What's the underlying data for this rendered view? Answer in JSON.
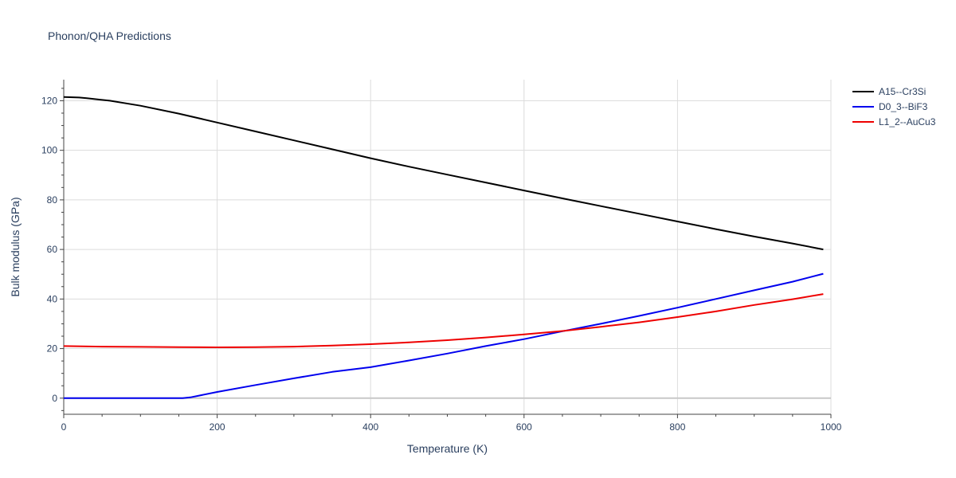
{
  "chart_data": {
    "type": "line",
    "title": "Phonon/QHA Predictions",
    "xlabel": "Temperature (K)",
    "ylabel": "Bulk modulus (GPa)",
    "xlim": [
      0,
      1000
    ],
    "ylim": [
      -6.5,
      128.5
    ],
    "x_ticks": [
      0,
      200,
      400,
      600,
      800,
      1000
    ],
    "y_ticks": [
      0,
      20,
      40,
      60,
      80,
      100,
      120
    ],
    "grid": true,
    "legend_position": "top-right",
    "series": [
      {
        "name": "A15--Cr3Si",
        "color": "#000000",
        "points": [
          [
            0,
            121.5
          ],
          [
            20,
            121.3
          ],
          [
            30,
            121.0
          ],
          [
            60,
            120.0
          ],
          [
            100,
            118.0
          ],
          [
            150,
            114.8
          ],
          [
            200,
            111.2
          ],
          [
            250,
            107.6
          ],
          [
            300,
            104.0
          ],
          [
            350,
            100.4
          ],
          [
            400,
            96.8
          ],
          [
            450,
            93.4
          ],
          [
            500,
            90.2
          ],
          [
            550,
            87.0
          ],
          [
            600,
            83.8
          ],
          [
            650,
            80.6
          ],
          [
            700,
            77.5
          ],
          [
            750,
            74.4
          ],
          [
            800,
            71.3
          ],
          [
            850,
            68.2
          ],
          [
            900,
            65.2
          ],
          [
            950,
            62.4
          ],
          [
            990,
            60.0
          ]
        ]
      },
      {
        "name": "D0_3--BiF3",
        "color": "#0000ee",
        "points": [
          [
            0,
            0
          ],
          [
            100,
            0
          ],
          [
            155,
            0
          ],
          [
            165,
            0.3
          ],
          [
            200,
            2.5
          ],
          [
            250,
            5.3
          ],
          [
            300,
            8.0
          ],
          [
            350,
            10.6
          ],
          [
            400,
            12.5
          ],
          [
            450,
            15.2
          ],
          [
            500,
            18.0
          ],
          [
            550,
            21.0
          ],
          [
            600,
            23.8
          ],
          [
            650,
            27.0
          ],
          [
            700,
            30.0
          ],
          [
            750,
            33.2
          ],
          [
            800,
            36.5
          ],
          [
            850,
            40.0
          ],
          [
            900,
            43.5
          ],
          [
            950,
            47.0
          ],
          [
            990,
            50.2
          ]
        ]
      },
      {
        "name": "L1_2--AuCu3",
        "color": "#ee0000",
        "points": [
          [
            0,
            21.0
          ],
          [
            50,
            20.8
          ],
          [
            100,
            20.7
          ],
          [
            150,
            20.6
          ],
          [
            200,
            20.5
          ],
          [
            250,
            20.6
          ],
          [
            300,
            20.8
          ],
          [
            350,
            21.2
          ],
          [
            400,
            21.8
          ],
          [
            450,
            22.5
          ],
          [
            500,
            23.4
          ],
          [
            550,
            24.5
          ],
          [
            600,
            25.7
          ],
          [
            650,
            27.1
          ],
          [
            700,
            28.8
          ],
          [
            750,
            30.6
          ],
          [
            800,
            32.7
          ],
          [
            850,
            35.0
          ],
          [
            900,
            37.6
          ],
          [
            950,
            39.9
          ],
          [
            990,
            42.0
          ]
        ]
      }
    ]
  }
}
